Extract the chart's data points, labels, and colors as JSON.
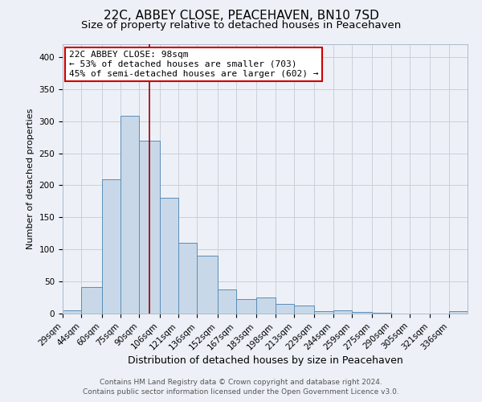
{
  "title": "22C, ABBEY CLOSE, PEACEHAVEN, BN10 7SD",
  "subtitle": "Size of property relative to detached houses in Peacehaven",
  "xlabel": "Distribution of detached houses by size in Peacehaven",
  "ylabel": "Number of detached properties",
  "categories": [
    "29sqm",
    "44sqm",
    "60sqm",
    "75sqm",
    "90sqm",
    "106sqm",
    "121sqm",
    "136sqm",
    "152sqm",
    "167sqm",
    "183sqm",
    "198sqm",
    "213sqm",
    "229sqm",
    "244sqm",
    "259sqm",
    "275sqm",
    "290sqm",
    "305sqm",
    "321sqm",
    "336sqm"
  ],
  "values": [
    5,
    42,
    210,
    308,
    270,
    180,
    110,
    90,
    38,
    23,
    25,
    15,
    12,
    4,
    5,
    3,
    1,
    0,
    0,
    0,
    4
  ],
  "bar_color": "#c8d8e8",
  "bar_edge_color": "#5b8db8",
  "property_line_x": 98,
  "bin_edges": [
    29,
    44,
    60,
    75,
    90,
    106,
    121,
    136,
    152,
    167,
    183,
    198,
    213,
    229,
    244,
    259,
    275,
    290,
    305,
    321,
    336,
    351
  ],
  "ylim": [
    0,
    420
  ],
  "yticks": [
    0,
    50,
    100,
    150,
    200,
    250,
    300,
    350,
    400
  ],
  "annotation_title": "22C ABBEY CLOSE: 98sqm",
  "annotation_line1": "← 53% of detached houses are smaller (703)",
  "annotation_line2": "45% of semi-detached houses are larger (602) →",
  "annotation_box_color": "#ffffff",
  "annotation_box_edge_color": "#cc0000",
  "property_line_color": "#990000",
  "grid_color": "#c8d0da",
  "background_color": "#edf1f7",
  "footer_line1": "Contains HM Land Registry data © Crown copyright and database right 2024.",
  "footer_line2": "Contains public sector information licensed under the Open Government Licence v3.0.",
  "title_fontsize": 11,
  "subtitle_fontsize": 9.5,
  "xlabel_fontsize": 9,
  "ylabel_fontsize": 8,
  "tick_fontsize": 7.5,
  "annotation_fontsize": 8,
  "footer_fontsize": 6.5
}
